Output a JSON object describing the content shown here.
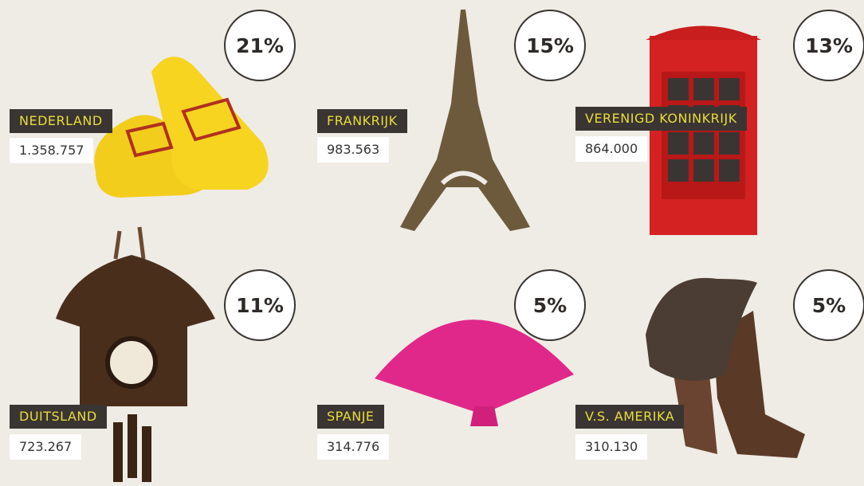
{
  "items": [
    {
      "country": "NEDERLAND",
      "number": "1.358.757",
      "percent": "21%"
    },
    {
      "country": "FRANKRIJK",
      "number": "983.563",
      "percent": "15%"
    },
    {
      "country": "VERENIGD KONINKRIJK",
      "number": "864.000",
      "percent": "13%"
    },
    {
      "country": "DUITSLAND",
      "number": "723.267",
      "percent": "11%"
    },
    {
      "country": "SPANJE",
      "number": "314.776",
      "percent": "5%"
    },
    {
      "country": "V.S. AMERIKA",
      "number": "310.130",
      "percent": "5%"
    }
  ]
}
